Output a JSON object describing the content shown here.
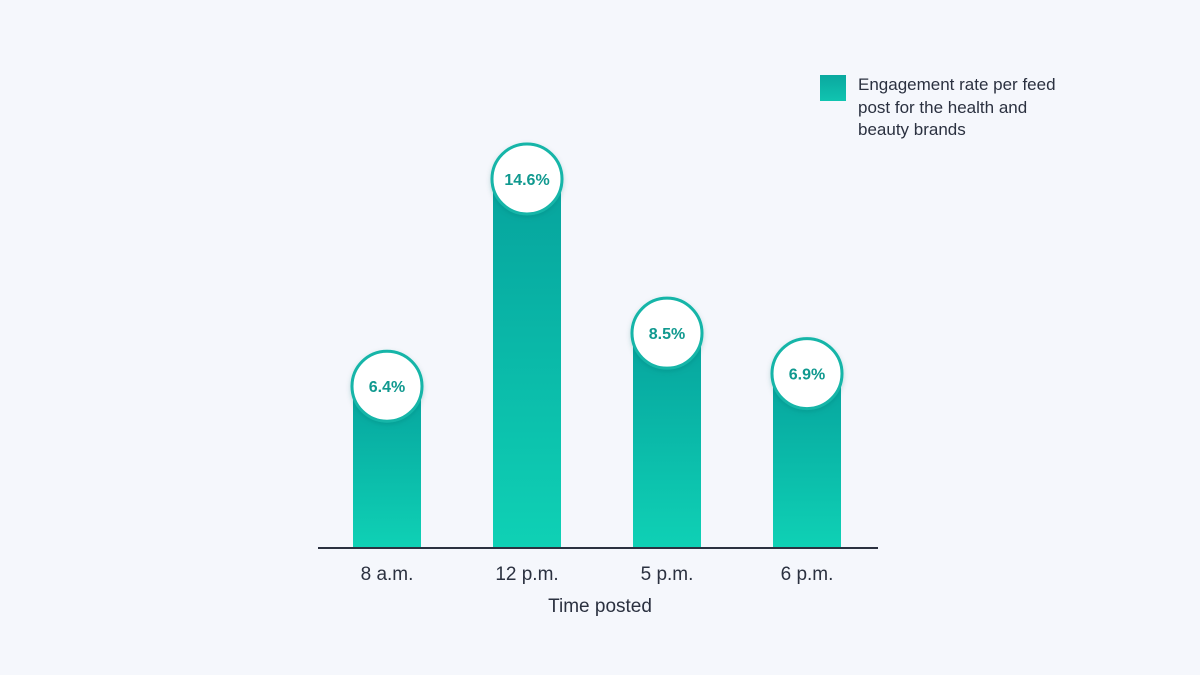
{
  "chart_data": {
    "type": "bar",
    "categories": [
      "8 a.m.",
      "12 p.m.",
      "5 p.m.",
      "6 p.m."
    ],
    "series": [
      {
        "name": "Engagement rate per feed post for the health and beauty brands",
        "values": [
          6.4,
          14.6,
          8.5,
          6.9
        ],
        "labels": [
          "6.4%",
          "14.6%",
          "8.5%",
          "6.9%"
        ]
      }
    ],
    "xlabel": "Time posted",
    "ylabel": "",
    "ylim": [
      0,
      18
    ],
    "legend_position": "top-right",
    "grid": false
  },
  "colors": {
    "bar_top": "#06a39d",
    "bar_bottom": "#0fd1b5",
    "circle_stroke": "#12b5a8",
    "label_text": "#10998f",
    "axis": "#2b3140",
    "background": "#f5f7fc"
  }
}
